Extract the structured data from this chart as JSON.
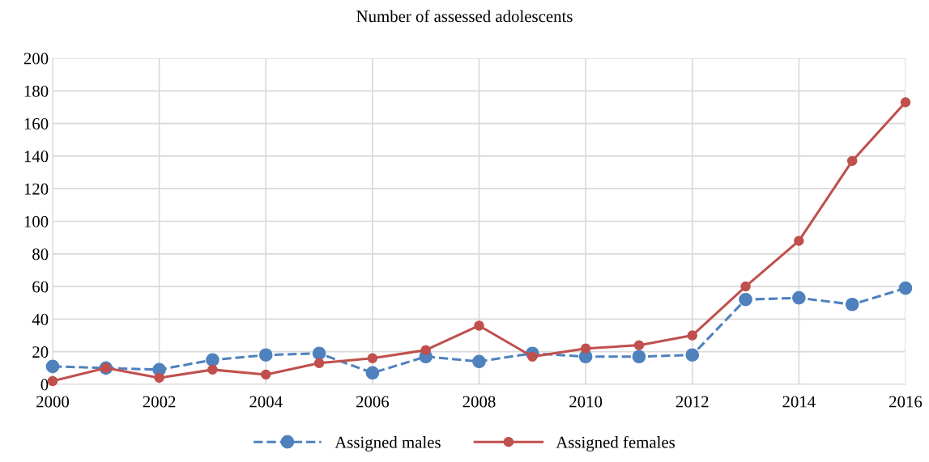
{
  "chart_data": {
    "type": "line",
    "title": "Number of assessed adolescents",
    "x": [
      2000,
      2001,
      2002,
      2003,
      2004,
      2005,
      2006,
      2007,
      2008,
      2009,
      2010,
      2011,
      2012,
      2013,
      2014,
      2015,
      2016
    ],
    "series": [
      {
        "name": "Assigned males",
        "color": "#4f81bd",
        "line_style": "dashed",
        "values": [
          11,
          10,
          9,
          15,
          18,
          19,
          7,
          17,
          14,
          19,
          17,
          17,
          18,
          52,
          53,
          49,
          59
        ]
      },
      {
        "name": "Assigned females",
        "color": "#c0504d",
        "line_style": "solid",
        "values": [
          2,
          10,
          4,
          9,
          6,
          13,
          16,
          21,
          36,
          17,
          22,
          24,
          30,
          60,
          88,
          137,
          173
        ]
      }
    ],
    "xlim": [
      2000,
      2016
    ],
    "xticks": [
      2000,
      2002,
      2004,
      2006,
      2008,
      2010,
      2012,
      2014,
      2016
    ],
    "ylim": [
      0,
      200
    ],
    "yticks": [
      0,
      20,
      40,
      60,
      80,
      100,
      120,
      140,
      160,
      180,
      200
    ],
    "grid": true,
    "legend": "bottom",
    "marker": "circle"
  }
}
